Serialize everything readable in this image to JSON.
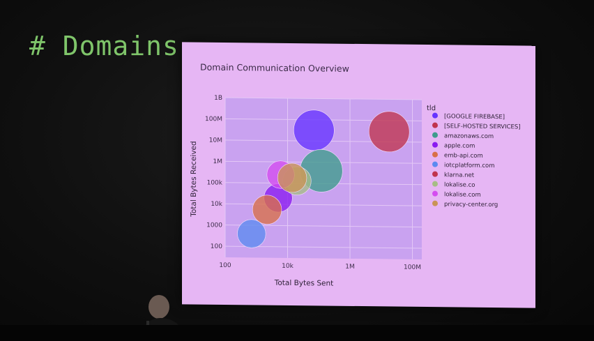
{
  "slide_heading": "# Domains",
  "chart_data": {
    "type": "scatter",
    "title": "Domain Communication Overview",
    "xlabel": "Total Bytes Sent",
    "ylabel": "Total Bytes Received",
    "xscale": "log",
    "yscale": "log",
    "xlim": [
      100,
      200000000
    ],
    "ylim": [
      30,
      1000000000
    ],
    "x_ticks": [
      {
        "value": 100,
        "label": "100"
      },
      {
        "value": 10000,
        "label": "10k"
      },
      {
        "value": 1000000,
        "label": "1M"
      },
      {
        "value": 100000000,
        "label": "100M"
      }
    ],
    "y_ticks": [
      {
        "value": 100,
        "label": "100"
      },
      {
        "value": 1000,
        "label": "1000"
      },
      {
        "value": 10000,
        "label": "10k"
      },
      {
        "value": 100000,
        "label": "100k"
      },
      {
        "value": 1000000,
        "label": "1M"
      },
      {
        "value": 10000000,
        "label": "10M"
      },
      {
        "value": 100000000,
        "label": "100M"
      },
      {
        "value": 1000000000,
        "label": "1B"
      }
    ],
    "grid": true,
    "legend_title": "tld",
    "legend_position": "right",
    "series": [
      {
        "name": "[GOOGLE FIREBASE]",
        "color": "#6633ff",
        "x": 70000,
        "y": 32000000,
        "size": 1.0
      },
      {
        "name": "[SELF-HOSTED SERVICES]",
        "color": "#c0344e",
        "x": 18000000,
        "y": 30000000,
        "size": 1.0
      },
      {
        "name": "amazonaws.com",
        "color": "#3e9c8c",
        "x": 120000,
        "y": 400000,
        "size": 1.05
      },
      {
        "name": "apple.com",
        "color": "#8a1bf0",
        "x": 5000,
        "y": 20000,
        "size": 0.7
      },
      {
        "name": "emb-api.com",
        "color": "#d87048",
        "x": 2200,
        "y": 5500,
        "size": 0.72
      },
      {
        "name": "iotcplatform.com",
        "color": "#5c8af0",
        "x": 700,
        "y": 400,
        "size": 0.7
      },
      {
        "name": "klarna.net",
        "color": "#c0344e",
        "x": 0,
        "y": 0,
        "size": 0
      },
      {
        "name": "lokalise.co",
        "color": "#a6bd86",
        "x": 20000,
        "y": 130000,
        "size": 0.7
      },
      {
        "name": "lokalise.com",
        "color": "#d44cf0",
        "x": 6000,
        "y": 250000,
        "size": 0.68
      },
      {
        "name": "privacy-center.org",
        "color": "#c99456",
        "x": 14000,
        "y": 180000,
        "size": 0.72
      }
    ]
  }
}
